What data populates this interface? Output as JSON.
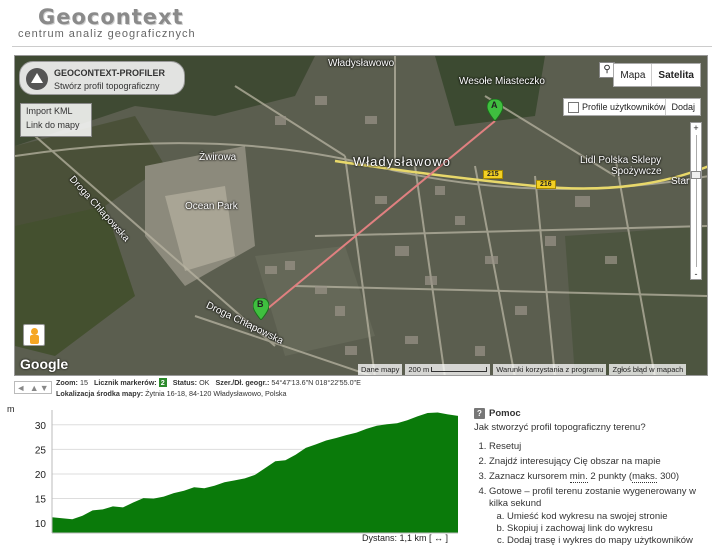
{
  "header": {
    "logo_title": "Geocontext",
    "logo_subtitle": "centrum analiz geograficznych"
  },
  "map": {
    "profiler_title": "GEOCONTEXT-PROFILER",
    "profiler_subtitle": "Stwórz profil topograficzny",
    "left_menu": [
      "Import KML",
      "Link do mapy"
    ],
    "map_types": [
      "Mapa",
      "Satelita"
    ],
    "active_map_type": "Satelita",
    "user_profiles_label": "Profile użytkowników",
    "add_label": "Dodaj",
    "zoom_plus": "+",
    "zoom_minus": "-",
    "zoom_glass": "⚲",
    "labels": {
      "town": "Władysławowo",
      "town_top": "Władysławowo",
      "amusement": "Wesołe Miasteczko",
      "lidl": "Lidl Polska Sklepy",
      "lidl2": "Spożywcze",
      "star": "Star",
      "zwirowa": "Żwirowa",
      "ocean_park": "Ocean Park",
      "road_chlapowska": "Droga Chłapowska",
      "road_chlapowska2": "Droga Chłapowska"
    },
    "road_shields": [
      "215",
      "216"
    ],
    "marker_a": "A",
    "marker_b": "B",
    "google": "Google",
    "footer": {
      "map_data": "Dane mapy",
      "scale": "200 m",
      "terms": "Warunki korzystania z programu",
      "report": "Zgłoś błąd w mapach"
    }
  },
  "info": {
    "nav_arrows": "◄ ▲▼",
    "zoom_label": "Zoom:",
    "zoom_value": "15",
    "markers_label": "Licznik markerów:",
    "markers_value": "2",
    "status_label": "Status:",
    "status_value": "OK",
    "coords_label": "Szer./Dł. geogr.:",
    "coords_value": "54°47'13.6\"N 018°22'55.0\"E",
    "location_label": "Lokalizacja środka mapy:",
    "location_value": "Żytnia 16-18, 84-120 Władysławowo, Polska"
  },
  "chart": {
    "unit": "m",
    "distance": "Dystans: 1,1 km [ ↔ ]"
  },
  "chart_data": {
    "type": "area",
    "title": "",
    "xlabel": "",
    "ylabel": "m",
    "ylim": [
      8,
      33
    ],
    "yticks": [
      10,
      15,
      20,
      25,
      30
    ],
    "grid": true,
    "color": "#0a7a0a",
    "x": [
      0,
      1,
      2,
      3,
      4,
      5,
      6,
      7,
      8,
      9,
      10,
      11,
      12,
      13,
      14,
      15,
      16,
      17,
      18,
      19,
      20,
      21,
      22,
      23,
      24,
      25,
      26,
      27,
      28,
      29,
      30,
      31,
      32,
      33,
      34,
      35,
      36,
      37,
      38,
      39,
      40
    ],
    "values": [
      11.2,
      11.0,
      10.8,
      11.5,
      12.6,
      12.8,
      13.4,
      13.2,
      14.2,
      15.1,
      15.0,
      15.4,
      16.1,
      16.6,
      17.3,
      17.1,
      17.6,
      18.3,
      18.7,
      19.1,
      19.8,
      21.2,
      22.6,
      22.8,
      23.9,
      25.3,
      26.0,
      26.8,
      27.3,
      27.9,
      28.4,
      29.2,
      29.8,
      30.1,
      30.3,
      30.9,
      31.7,
      32.4,
      32.5,
      32.1,
      31.8
    ]
  },
  "help": {
    "title": "Pomoc",
    "intro": "Jak stworzyć profil topograficzny terenu?",
    "step1": "Resetuj",
    "step2": "Znajdź interesujący Cię obszar na mapie",
    "step3_pre": "Zaznacz kursorem ",
    "step3_min": "min.",
    "step3_mid": " 2 punkty (",
    "step3_max": "maks.",
    "step3_post": " 300)",
    "step4": "Gotowe – profil terenu zostanie wygenerowany w kilka sekund",
    "sub_a": "Umieść kod wykresu na swojej stronie",
    "sub_b": "Skopiuj i zachowaj link do wykresu",
    "sub_c": "Dodaj trasę i wykres do mapy użytkowników"
  }
}
